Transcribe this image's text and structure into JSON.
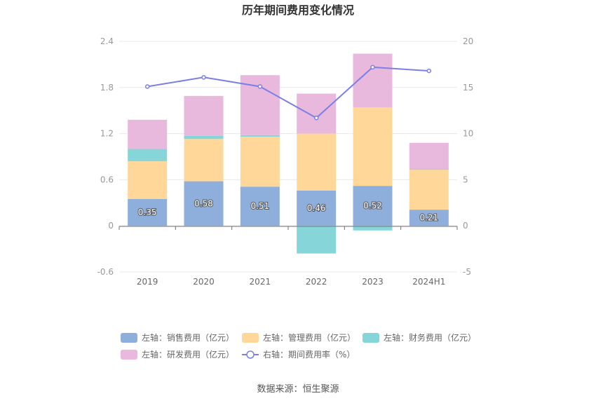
{
  "chart_data": {
    "type": "bar",
    "title": "历年期间费用变化情况",
    "categories": [
      "2019",
      "2020",
      "2021",
      "2022",
      "2023",
      "2024H1"
    ],
    "left_axis": {
      "ticks": [
        "2.4",
        "1.8",
        "1.2",
        "0.6",
        "0",
        "-0.6"
      ],
      "ylim": [
        -0.6,
        2.4
      ]
    },
    "right_axis": {
      "ticks": [
        "20",
        "15",
        "10",
        "5",
        "0",
        "-5"
      ],
      "ylim": [
        -5,
        20
      ]
    },
    "series": [
      {
        "name": "左轴：销售费用（亿元）",
        "color": "#8eaedc",
        "values": [
          0.35,
          0.58,
          0.51,
          0.46,
          0.52,
          0.21
        ],
        "labels": [
          "0.35",
          "0.58",
          "0.51",
          "0.46",
          "0.52",
          "0.21"
        ]
      },
      {
        "name": "左轴：管理费用（亿元）",
        "color": "#ffd899",
        "values": [
          0.49,
          0.55,
          0.65,
          0.74,
          1.02,
          0.52
        ]
      },
      {
        "name": "左轴：财务费用（亿元）",
        "color": "#86d6d9",
        "values": [
          0.16,
          0.04,
          0.02,
          -0.36,
          -0.06,
          0.01
        ]
      },
      {
        "name": "左轴：研发费用（亿元）",
        "color": "#e8b9dc",
        "values": [
          0.38,
          0.52,
          0.78,
          0.52,
          0.7,
          0.34
        ]
      },
      {
        "name": "右轴：期间费用率（%）",
        "color": "#7b7fe6",
        "type": "line",
        "values": [
          15.1,
          16.1,
          15.1,
          11.7,
          17.2,
          16.8
        ]
      }
    ],
    "legend_position": "bottom",
    "grid": true
  },
  "source": "数据来源：恒生聚源"
}
